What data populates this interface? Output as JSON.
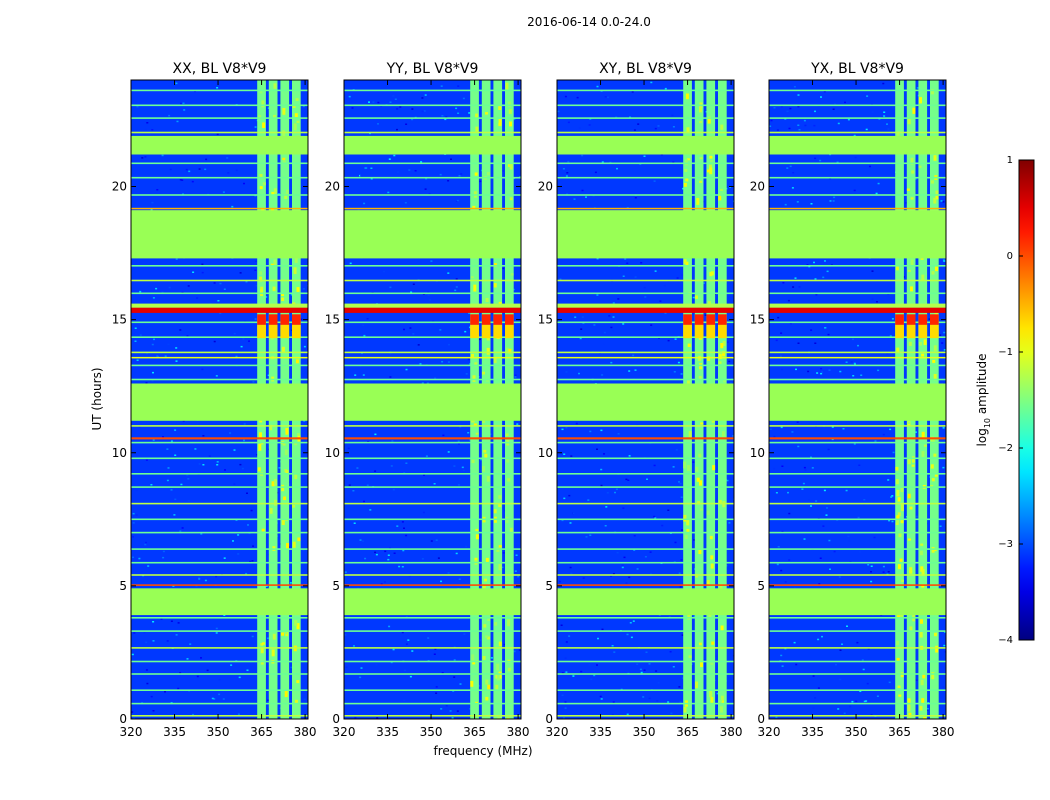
{
  "chart_data": {
    "type": "heatmap",
    "suptitle": "2016-06-14 0.0-24.0",
    "xlabel": "frequency (MHz)",
    "ylabel": "UT (hours)",
    "xlim": [
      320,
      381
    ],
    "ylim": [
      0,
      24
    ],
    "xticks": [
      "320",
      "335",
      "350",
      "365",
      "380"
    ],
    "xtick_values": [
      320,
      335,
      350,
      365,
      380
    ],
    "yticks": [
      "0",
      "5",
      "10",
      "15",
      "20"
    ],
    "ytick_values": [
      0,
      5,
      10,
      15,
      20
    ],
    "panels": [
      {
        "title": "XX, BL V8*V9",
        "pol": "XX"
      },
      {
        "title": "YY, BL V8*V9",
        "pol": "YY"
      },
      {
        "title": "XY, BL V8*V9",
        "pol": "XY"
      },
      {
        "title": "YX, BL V8*V9",
        "pol": "YX"
      }
    ],
    "colorbar": {
      "label": "log10 amplitude",
      "label_main": "log",
      "label_sub": "10",
      "label_rest": " amplitude",
      "range": [
        -4,
        1
      ],
      "ticks": [
        "1",
        "0",
        "−1",
        "−2",
        "−3",
        "−4"
      ],
      "tick_values": [
        1,
        0,
        -1,
        -2,
        -3,
        -4
      ],
      "colormap": "jet"
    },
    "flagged_blocks_hours": [
      [
        3.9,
        4.9
      ],
      [
        11.2,
        12.6
      ],
      [
        17.3,
        19.1
      ],
      [
        21.2,
        21.9
      ]
    ],
    "signal_band_mhz": [
      362,
      380
    ],
    "signal_channels_mhz": [
      [
        363.5,
        366.5
      ],
      [
        367.5,
        370.5
      ],
      [
        371.5,
        374.5
      ],
      [
        375.5,
        378.5
      ]
    ],
    "strong_rows_hours": [
      [
        15.2,
        15.6
      ],
      [
        10.5,
        10.6
      ]
    ],
    "colors": {
      "background_noise": "#1a3cf0",
      "flagged": "#99ff55",
      "hot": "#cc0000"
    }
  }
}
